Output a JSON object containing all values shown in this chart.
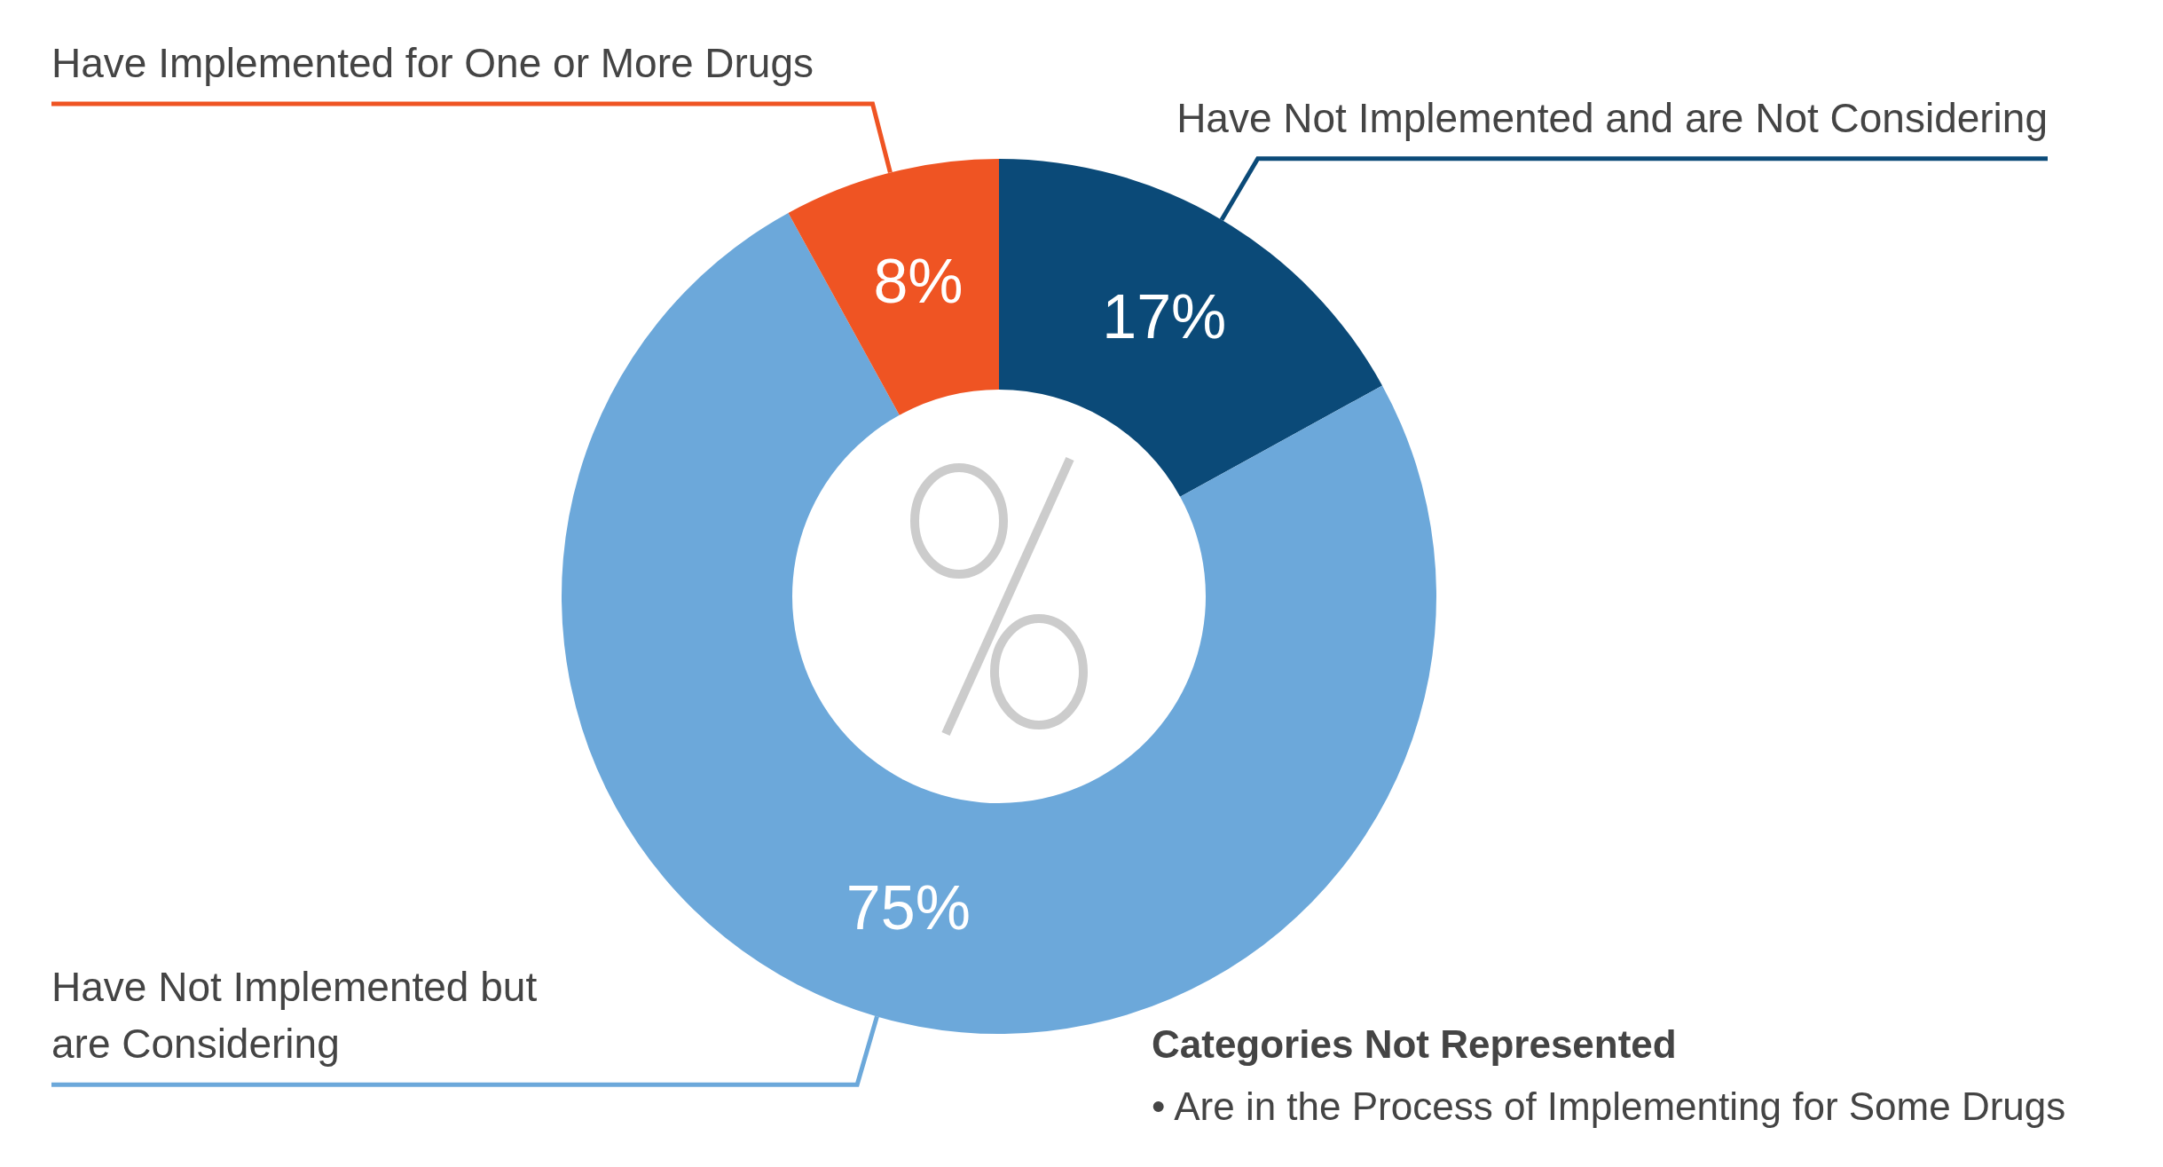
{
  "chart_data": {
    "type": "donut",
    "categories": [
      "Have Not Implemented and are Not Considering",
      "Have Not Implemented but are Considering",
      "Have Implemented for One or More Drugs"
    ],
    "values": [
      17,
      75,
      8
    ],
    "colors": [
      "#0b4a78",
      "#6ca8da",
      "#ef5423"
    ],
    "value_labels": [
      "17%",
      "75%",
      "8%"
    ],
    "legend": false,
    "annotations": [
      "Categories Not Represented",
      "• Are in the Process of Implementing for Some Drugs"
    ]
  }
}
